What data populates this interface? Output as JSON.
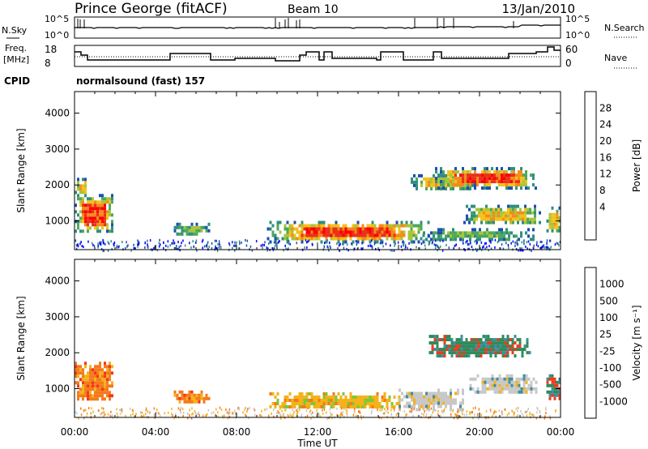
{
  "header": {
    "station": "Prince George (fitACF)",
    "beam": "Beam 10",
    "date": "13/Jan/2010"
  },
  "nsky": {
    "label": "N.Sky",
    "ticks": [
      "10^5",
      "10^0"
    ],
    "right_label": "N.Search",
    "right_ticks": [
      "10^5",
      "10^0"
    ]
  },
  "freq": {
    "label_line1": "Freq.",
    "label_line2": "[MHz]",
    "ticks": [
      "18",
      "8"
    ],
    "right_label": "Nave",
    "right_ticks": [
      "60",
      "0"
    ]
  },
  "cpid": {
    "label": "CPID",
    "text": "normalsound (fast) 157"
  },
  "chart_data": [
    {
      "type": "heatmap",
      "name": "power-panel",
      "ylabel": "Slant Range [km]",
      "ylim": [
        200,
        4600
      ],
      "yticks": [
        "4000",
        "3000",
        "2000",
        "1000"
      ],
      "ytick_values": [
        4000,
        3000,
        2000,
        1000
      ],
      "xlim": [
        0,
        24
      ],
      "colorbar": {
        "label": "Power [dB]",
        "ticks": [
          "28",
          "24",
          "20",
          "16",
          "12",
          "8",
          "4"
        ],
        "colors": [
          "#0000ff",
          "#1c4fb0",
          "#2f8f7f",
          "#4fa85a",
          "#a6c63a",
          "#f2c21a",
          "#f58a1a",
          "#e8321c",
          "#ff0000"
        ]
      },
      "regions": [
        {
          "t0": 0.0,
          "t1": 1.9,
          "r0": 700,
          "r1": 1750,
          "level": "high"
        },
        {
          "t0": 0.0,
          "t1": 0.6,
          "r0": 1750,
          "r1": 2200,
          "level": "mid"
        },
        {
          "t0": 4.9,
          "t1": 6.7,
          "r0": 650,
          "r1": 950,
          "level": "low"
        },
        {
          "t0": 9.5,
          "t1": 17.5,
          "r0": 450,
          "r1": 1000,
          "level": "high"
        },
        {
          "t0": 16.6,
          "t1": 19.8,
          "r0": 1900,
          "r1": 2300,
          "level": "mid"
        },
        {
          "t0": 17.8,
          "t1": 22.8,
          "r0": 1950,
          "r1": 2500,
          "level": "high"
        },
        {
          "t0": 19.2,
          "t1": 23.0,
          "r0": 950,
          "r1": 1450,
          "level": "mid"
        },
        {
          "t0": 17.2,
          "t1": 22.6,
          "r0": 500,
          "r1": 800,
          "level": "low"
        },
        {
          "t0": 23.3,
          "t1": 24.0,
          "r0": 700,
          "r1": 1400,
          "level": "mid"
        }
      ]
    },
    {
      "type": "heatmap",
      "name": "velocity-panel",
      "ylabel": "Slant Range [km]",
      "ylim": [
        200,
        4600
      ],
      "yticks": [
        "4000",
        "3000",
        "2000",
        "1000"
      ],
      "ytick_values": [
        4000,
        3000,
        2000,
        1000
      ],
      "xlim": [
        0,
        24
      ],
      "xticks": [
        "00:00",
        "04:00",
        "08:00",
        "12:00",
        "16:00",
        "20:00",
        "00:00"
      ],
      "xtick_values": [
        0,
        4,
        8,
        12,
        16,
        20,
        24
      ],
      "xlabel": "Time UT",
      "colorbar": {
        "label": "Velocity [m s^-1]",
        "ticks": [
          "1000",
          "500",
          "100",
          "25",
          "-25",
          "-100",
          "-500",
          "-1000"
        ],
        "colors": [
          "#2a3fa8",
          "#3f8fa0",
          "#2f8a5a",
          "#7ac83a",
          "#c8c8c8",
          "#f5b21a",
          "#f57a1a",
          "#ee3a1a",
          "#ff0000"
        ]
      },
      "regions": [
        {
          "t0": 0.0,
          "t1": 1.9,
          "r0": 700,
          "r1": 1750,
          "kind": "orange"
        },
        {
          "t0": 4.9,
          "t1": 6.7,
          "r0": 650,
          "r1": 950,
          "kind": "orange"
        },
        {
          "t0": 9.5,
          "t1": 16.0,
          "r0": 450,
          "r1": 900,
          "kind": "yellow"
        },
        {
          "t0": 16.0,
          "t1": 19.2,
          "r0": 450,
          "r1": 1000,
          "kind": "grey"
        },
        {
          "t0": 17.5,
          "t1": 22.5,
          "r0": 1900,
          "r1": 2500,
          "kind": "green"
        },
        {
          "t0": 19.5,
          "t1": 22.8,
          "r0": 900,
          "r1": 1400,
          "kind": "grey"
        },
        {
          "t0": 23.3,
          "t1": 24.0,
          "r0": 700,
          "r1": 1400,
          "kind": "green"
        }
      ]
    }
  ]
}
